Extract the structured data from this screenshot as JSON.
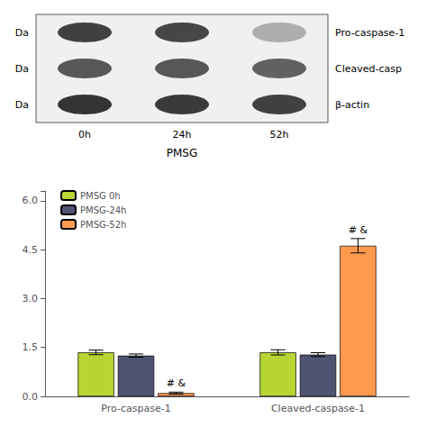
{
  "chart_data": [
    {
      "type": "heatmap",
      "categories": [
        "0h",
        "24h",
        "52h"
      ],
      "row_labels": [
        "Da",
        "Da",
        "Da"
      ],
      "series": [
        {
          "name": "Pro-caspase-1",
          "values": [
            0.82,
            0.8,
            0.35
          ]
        },
        {
          "name": "Cleaved-casp",
          "values": [
            0.72,
            0.72,
            0.68
          ]
        },
        {
          "name": "β-actin",
          "values": [
            0.88,
            0.85,
            0.82
          ]
        }
      ],
      "xlabel": "PMSG"
    },
    {
      "type": "bar",
      "categories": [
        "Pro-caspase-1",
        "Cleaved-caspase-1"
      ],
      "series": [
        {
          "name": "PMSG 0h",
          "values": [
            1.35,
            1.35
          ],
          "errors": [
            0.07,
            0.08
          ]
        },
        {
          "name": "PMSG-24h",
          "values": [
            1.25,
            1.28
          ],
          "errors": [
            0.05,
            0.06
          ]
        },
        {
          "name": "PMSG-52h",
          "values": [
            0.1,
            4.62
          ],
          "errors": [
            0.03,
            0.22
          ]
        }
      ],
      "ylim": [
        0.0,
        6.3
      ],
      "yticks": [
        {
          "value": 0.0,
          "label": "0.0"
        },
        1.5,
        {
          "value": 3.0,
          "label": "3.0"
        },
        4.5,
        {
          "value": 6.0,
          "label": "6.0"
        }
      ],
      "grid": false,
      "legend": "upper left",
      "annotations": [
        {
          "text": "# &",
          "category": "Pro-caspase-1",
          "series": "PMSG-52h"
        },
        {
          "text": "# &",
          "category": "Cleaved-caspase-1",
          "series": "PMSG-52h"
        }
      ]
    }
  ]
}
